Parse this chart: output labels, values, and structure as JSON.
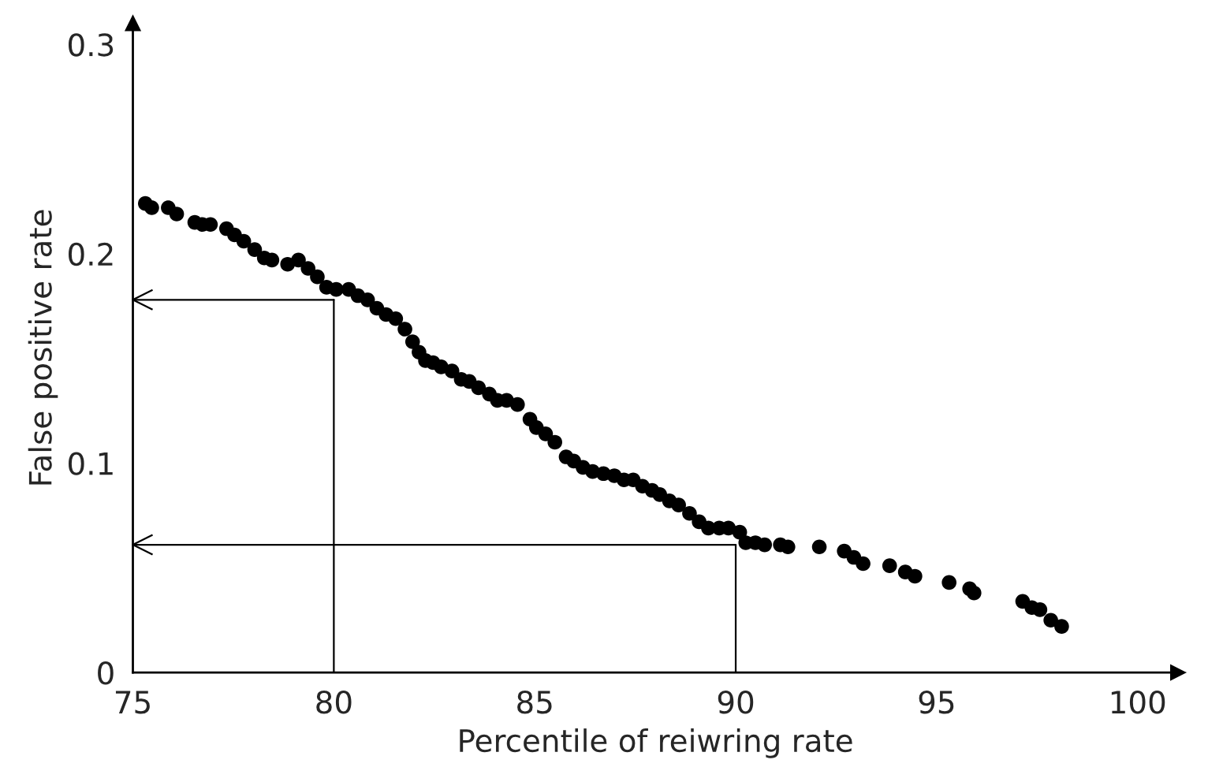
{
  "chart_data": {
    "type": "scatter",
    "xlabel": "Percentile of reiwring rate",
    "ylabel": "False positive rate",
    "xlim": [
      75,
      101
    ],
    "ylim": [
      0,
      0.31
    ],
    "xticks": [
      75,
      80,
      85,
      90,
      95,
      100
    ],
    "yticks": [
      0,
      0.1,
      0.2,
      0.3
    ],
    "grid": false,
    "marker": "circle",
    "ref_lines": [
      {
        "axis": "x",
        "value": 80,
        "color": "#000000"
      },
      {
        "axis": "y",
        "value": 0.178,
        "color": "#000000"
      },
      {
        "axis": "x",
        "value": 90,
        "color": "#000000"
      },
      {
        "axis": "y",
        "value": 0.061,
        "color": "#000000"
      }
    ],
    "series": [
      {
        "color": "#000000",
        "x": [
          75.31,
          75.47,
          75.88,
          76.09,
          76.54,
          76.73,
          76.93,
          77.33,
          77.53,
          77.76,
          78.03,
          78.27,
          78.46,
          78.85,
          79.12,
          79.36,
          79.59,
          79.82,
          80.06,
          80.37,
          80.6,
          80.84,
          81.07,
          81.3,
          81.54,
          81.77,
          81.96,
          82.12,
          82.28,
          82.47,
          82.67,
          82.94,
          83.17,
          83.37,
          83.6,
          83.87,
          84.07,
          84.3,
          84.57,
          84.88,
          85.04,
          85.27,
          85.5,
          85.78,
          85.97,
          86.2,
          86.44,
          86.71,
          86.98,
          87.22,
          87.45,
          87.68,
          87.92,
          88.11,
          88.35,
          88.58,
          88.85,
          89.09,
          89.32,
          89.59,
          89.82,
          90.1,
          90.25,
          90.49,
          90.72,
          91.11,
          91.3,
          92.08,
          92.7,
          92.94,
          93.17,
          93.83,
          94.22,
          94.46,
          95.31,
          95.82,
          95.93,
          97.14,
          97.37,
          97.57,
          97.84,
          98.11
        ],
        "values": [
          0.224,
          0.222,
          0.222,
          0.219,
          0.215,
          0.214,
          0.214,
          0.212,
          0.209,
          0.206,
          0.202,
          0.198,
          0.197,
          0.195,
          0.197,
          0.193,
          0.189,
          0.184,
          0.183,
          0.183,
          0.18,
          0.178,
          0.174,
          0.171,
          0.169,
          0.164,
          0.158,
          0.153,
          0.149,
          0.148,
          0.146,
          0.144,
          0.14,
          0.139,
          0.136,
          0.133,
          0.13,
          0.13,
          0.128,
          0.121,
          0.117,
          0.114,
          0.11,
          0.103,
          0.101,
          0.098,
          0.096,
          0.095,
          0.094,
          0.092,
          0.092,
          0.089,
          0.087,
          0.085,
          0.082,
          0.08,
          0.076,
          0.072,
          0.069,
          0.069,
          0.069,
          0.067,
          0.062,
          0.062,
          0.061,
          0.061,
          0.06,
          0.06,
          0.058,
          0.055,
          0.052,
          0.051,
          0.048,
          0.046,
          0.043,
          0.04,
          0.038,
          0.034,
          0.031,
          0.03,
          0.025,
          0.022
        ]
      }
    ]
  }
}
